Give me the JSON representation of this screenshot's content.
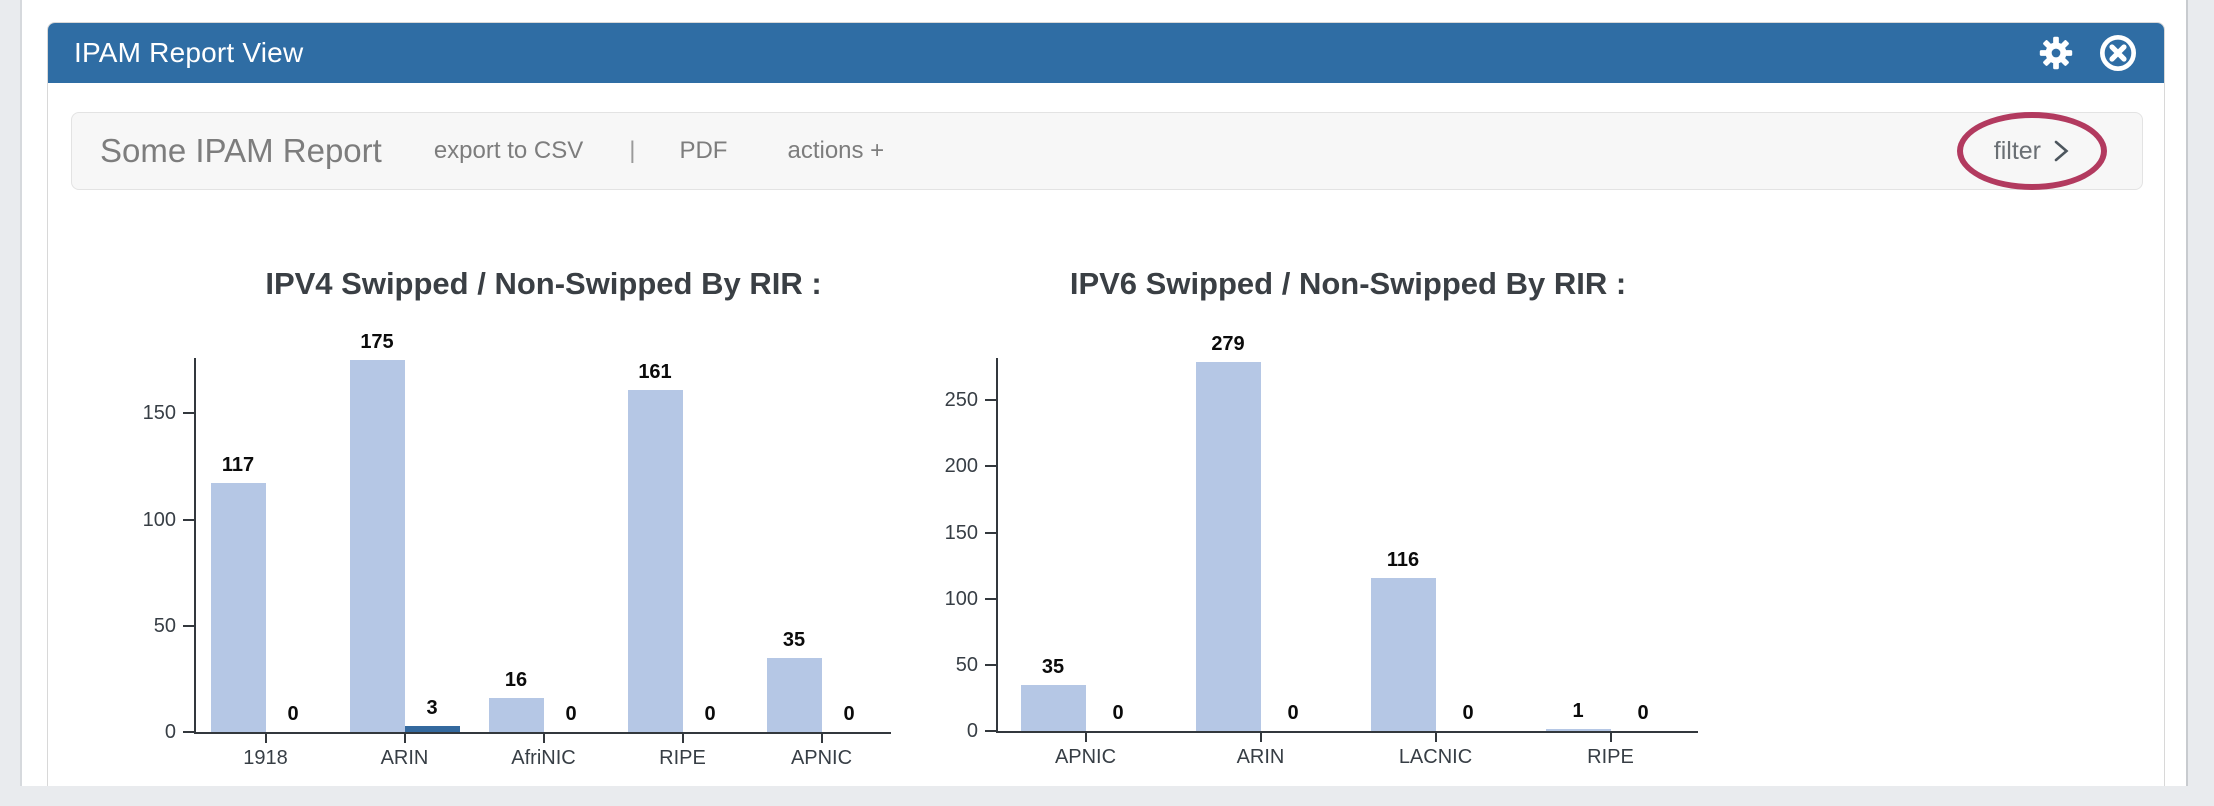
{
  "window": {
    "title": "IPAM Report View"
  },
  "header": {
    "icons": [
      {
        "name": "settings-gear"
      },
      {
        "name": "close-circle-x"
      }
    ]
  },
  "toolbar": {
    "report_title": "Some IPAM Report",
    "export_csv_label": "export to CSV",
    "separator": "|",
    "pdf_label": "PDF",
    "actions_label": "actions +",
    "filter_label": "filter"
  },
  "annotation": {
    "shape": "ellipse",
    "target": "filter-button",
    "color": "#b23a5f"
  },
  "colors": {
    "header_bg": "#2f6da4",
    "page_bg": "#e9ebee",
    "panel_bg": "#ffffff",
    "toolbar_bg": "#f7f7f7",
    "toolbar_text": "#7d7d7d",
    "axis": "#33383d",
    "bar_light": "#b5c7e5",
    "bar_dark": "#34699e"
  },
  "chart_data": [
    {
      "type": "bar",
      "title": "IPV4 Swipped / Non-Swipped By RIR :",
      "categories": [
        "1918",
        "ARIN",
        "AfriNIC",
        "RIPE",
        "APNIC"
      ],
      "series": [
        {
          "name": "Swipped",
          "color": "#b5c7e5",
          "values": [
            117,
            175,
            16,
            161,
            35
          ]
        },
        {
          "name": "Non-Swipped",
          "color": "#34699e",
          "values": [
            0,
            3,
            0,
            0,
            0
          ]
        }
      ],
      "yticks": [
        0,
        50,
        100,
        150
      ],
      "ylim": [
        0,
        176
      ],
      "xlabel": "",
      "ylabel": "",
      "grid": false,
      "legend": "none",
      "value_labels": true
    },
    {
      "type": "bar",
      "title": "IPV6 Swipped / Non-Swipped By RIR :",
      "categories": [
        "APNIC",
        "ARIN",
        "LACNIC",
        "RIPE"
      ],
      "series": [
        {
          "name": "Swipped",
          "color": "#b5c7e5",
          "values": [
            35,
            279,
            116,
            1
          ]
        },
        {
          "name": "Non-Swipped",
          "color": "#34699e",
          "values": [
            0,
            0,
            0,
            0
          ]
        }
      ],
      "yticks": [
        0,
        50,
        100,
        150,
        200,
        250
      ],
      "ylim": [
        0,
        282
      ],
      "xlabel": "",
      "ylabel": "",
      "grid": false,
      "legend": "none",
      "value_labels": true
    }
  ]
}
